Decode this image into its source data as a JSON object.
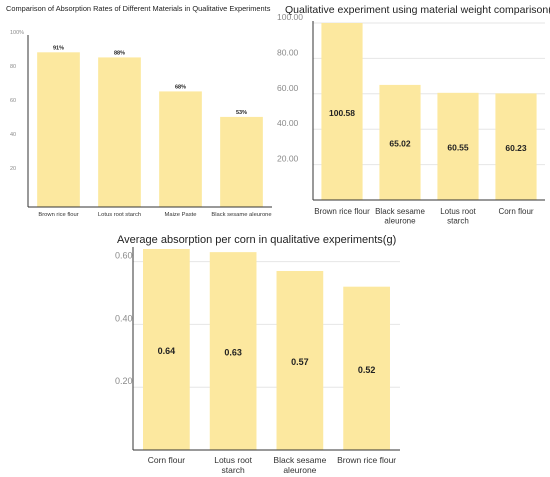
{
  "colors": {
    "bar": "#fce89f",
    "axis": "#333333",
    "grid": "#e6e6e6",
    "tick": "#8a8a8a"
  },
  "chart_data": [
    {
      "type": "bar",
      "title": "Comparison of Absorption Rates of Different Materials in Qualitative Experiments",
      "categories": [
        "Brown rice flour",
        "Lotus root starch",
        "Maize Paste",
        "Black sesame aleurone"
      ],
      "values": [
        91,
        88,
        68,
        53
      ],
      "value_labels": [
        "91%",
        "88%",
        "68%",
        "53%"
      ],
      "ylim": [
        0,
        100
      ],
      "yticks": [
        20,
        40,
        60,
        80,
        100
      ],
      "ytick_labels": [
        "20",
        "40",
        "60",
        "80",
        "100%"
      ],
      "grid": false
    },
    {
      "type": "bar",
      "title": "Qualitative experiment using material weight comparison(g)",
      "categories": [
        [
          "Brown rice flour"
        ],
        [
          "Black sesame",
          "aleurone"
        ],
        [
          "Lotus root",
          "starch"
        ],
        [
          "Corn flour"
        ]
      ],
      "values": [
        100.58,
        65.02,
        60.55,
        60.23
      ],
      "value_labels": [
        "100.58",
        "65.02",
        "60.55",
        "60.23"
      ],
      "ylim": [
        0,
        100
      ],
      "yticks": [
        20,
        40,
        60,
        80,
        100
      ],
      "ytick_labels": [
        "20.00",
        "40.00",
        "60.00",
        "80.00",
        "100.00"
      ],
      "grid": true
    },
    {
      "type": "bar",
      "title": "Average absorption per corn in qualitative experiments(g)",
      "categories": [
        [
          "Corn flour"
        ],
        [
          "Lotus root",
          "starch"
        ],
        [
          "Black sesame",
          "aleurone"
        ],
        [
          "Brown rice flour"
        ]
      ],
      "values": [
        0.64,
        0.63,
        0.57,
        0.52
      ],
      "value_labels": [
        "0.64",
        "0.63",
        "0.57",
        "0.52"
      ],
      "ylim": [
        0,
        0.64
      ],
      "yticks": [
        0.2,
        0.4,
        0.6
      ],
      "ytick_labels": [
        "0.20",
        "0.40",
        "0.60"
      ],
      "grid": true
    }
  ]
}
